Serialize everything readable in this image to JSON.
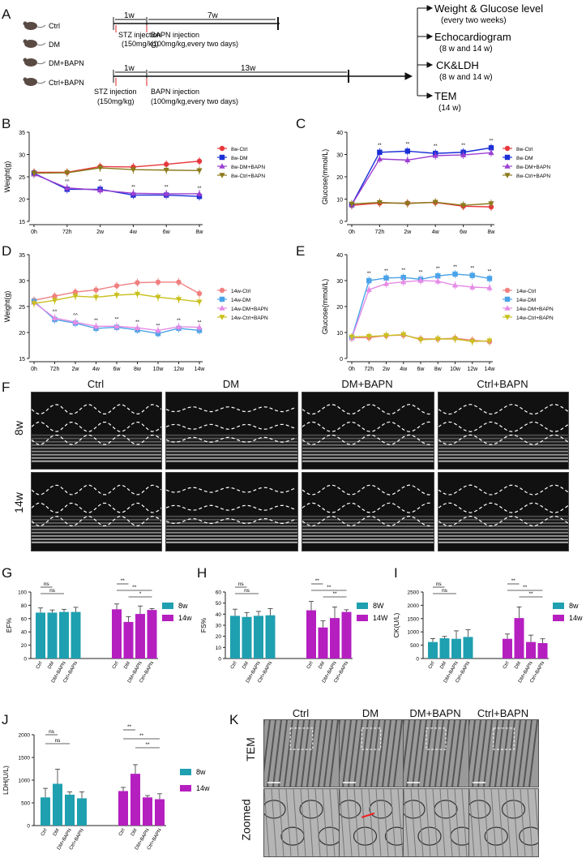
{
  "panels": {
    "A": "A",
    "B": "B",
    "C": "C",
    "D": "D",
    "E": "E",
    "F": "F",
    "G": "G",
    "H": "H",
    "I": "I",
    "J": "J",
    "K": "K"
  },
  "panel_a": {
    "groups": [
      "Ctrl",
      "DM",
      "DM+BAPN",
      "Ctrl+BAPN"
    ],
    "timeline1": {
      "wk1": "1w",
      "wk2": "7w",
      "stz": "STZ injection",
      "stz_dose": "(150mg/kg)",
      "bapn": "BAPN injection",
      "bapn_dose": "(100mg/kg,every two days)"
    },
    "timeline2": {
      "wk1": "1w",
      "wk2": "13w",
      "stz": "STZ injection",
      "stz_dose": "(150mg/kg)",
      "bapn": "BAPN injection",
      "bapn_dose": "(100mg/kg,every two days)"
    },
    "measures": [
      {
        "title": "Weight & Glucose level",
        "sub": "(every two weeks)"
      },
      {
        "title": "Echocardiogram",
        "sub": "(8 w and 14 w)"
      },
      {
        "title": "CK&LDH",
        "sub": "(8 w and 14 w)"
      },
      {
        "title": "TEM",
        "sub": "(14 w)"
      }
    ]
  },
  "colors": {
    "ctrl": "#e8383d",
    "dm": "#1a2fd6",
    "dmbapn": "#9b3fd1",
    "ctrlbapn": "#8a7a1a",
    "c14_ctrl": "#f08080",
    "c14_dm": "#4aa3e8",
    "c14_dmbapn": "#e58be6",
    "c14_ctrlbapn": "#c9c01e",
    "w8": "#1fa0b0",
    "w14": "#b51fc0"
  },
  "echo": {
    "cols": [
      "Ctrl",
      "DM",
      "DM+BAPN",
      "Ctrl+BAPN"
    ],
    "rows": [
      "8w",
      "14w"
    ]
  },
  "tem": {
    "cols": [
      "Ctrl",
      "DM",
      "DM+BAPN",
      "Ctrl+BAPN"
    ],
    "rows": [
      "TEM",
      "Zoomed"
    ]
  },
  "chart_data": [
    {
      "id": "B",
      "type": "line",
      "ylabel": "Weight(g)",
      "xlabel": "",
      "ylim": [
        15,
        35
      ],
      "yticks": [
        15,
        20,
        25,
        30,
        35
      ],
      "categories": [
        "0h",
        "72h",
        "2w",
        "4w",
        "6w",
        "8w"
      ],
      "series": [
        {
          "name": "8w-Ctrl",
          "color": "#e8383d",
          "marker": "circle",
          "values": [
            26,
            26,
            27.3,
            27.2,
            27.8,
            28.5
          ]
        },
        {
          "name": "8w-DM",
          "color": "#1a2fd6",
          "marker": "square",
          "values": [
            25.8,
            22.2,
            22.2,
            20.9,
            20.9,
            20.6
          ]
        },
        {
          "name": "8w-DM+BAPN",
          "color": "#9b3fd1",
          "marker": "triangle",
          "values": [
            25.6,
            22.5,
            22,
            21.3,
            21.2,
            21.2
          ]
        },
        {
          "name": "8w-Ctrl+BAPN",
          "color": "#8a7a1a",
          "marker": "tridown",
          "values": [
            25.8,
            25.9,
            27,
            26.6,
            26.5,
            26.4
          ]
        }
      ],
      "annotations": [
        {
          "label": "^^",
          "index": 1
        },
        {
          "label": "**",
          "index": 2
        },
        {
          "label": "**",
          "index": 3
        },
        {
          "label": "**",
          "index": 4
        },
        {
          "label": "**",
          "index": 5
        }
      ]
    },
    {
      "id": "C",
      "type": "line",
      "ylabel": "Glucose(mmol/L)",
      "xlabel": "",
      "ylim": [
        0,
        40
      ],
      "yticks": [
        0,
        10,
        20,
        30,
        40
      ],
      "categories": [
        "0h",
        "72h",
        "2w",
        "4w",
        "6w",
        "8w"
      ],
      "series": [
        {
          "name": "8w-Ctrl",
          "color": "#e8383d",
          "marker": "circle",
          "values": [
            7.2,
            8.2,
            8.2,
            8.5,
            6.8,
            6.5
          ]
        },
        {
          "name": "8w-DM",
          "color": "#1a2fd6",
          "marker": "square",
          "values": [
            7.5,
            31,
            31.5,
            30.5,
            31,
            33
          ]
        },
        {
          "name": "8w-DM+BAPN",
          "color": "#9b3fd1",
          "marker": "triangle",
          "values": [
            7.5,
            28,
            27.5,
            29.5,
            29.8,
            30.8
          ]
        },
        {
          "name": "8w-Ctrl+BAPN",
          "color": "#8a7a1a",
          "marker": "tridown",
          "values": [
            7.8,
            8.5,
            8,
            8.6,
            7.2,
            8
          ]
        }
      ],
      "annotations": [
        {
          "label": "**",
          "index": 1
        },
        {
          "label": "**",
          "index": 2
        },
        {
          "label": "**",
          "index": 3
        },
        {
          "label": "**",
          "index": 4
        },
        {
          "label": "**",
          "index": 5
        }
      ]
    },
    {
      "id": "D",
      "type": "line",
      "ylabel": "Weight(g)",
      "xlabel": "",
      "ylim": [
        15,
        35
      ],
      "yticks": [
        15,
        20,
        25,
        30,
        35
      ],
      "categories": [
        "0h",
        "72h",
        "2w",
        "4w",
        "6w",
        "8w",
        "10w",
        "12w",
        "14w"
      ],
      "series": [
        {
          "name": "14w-Ctrl",
          "color": "#f08080",
          "marker": "circle",
          "values": [
            26.2,
            27,
            27.8,
            28.2,
            29,
            29.6,
            29.7,
            29.7,
            27.5
          ]
        },
        {
          "name": "14w-DM",
          "color": "#4aa3e8",
          "marker": "square",
          "values": [
            26,
            22.5,
            21.8,
            20.8,
            21,
            20.5,
            19.8,
            20.8,
            20.4
          ]
        },
        {
          "name": "14w-DM+BAPN",
          "color": "#e58be6",
          "marker": "triangle",
          "values": [
            25.8,
            22.8,
            22,
            21.2,
            21.2,
            20.9,
            20.4,
            21.1,
            21
          ]
        },
        {
          "name": "14w-Ctrl+BAPN",
          "color": "#c9c01e",
          "marker": "tridown",
          "values": [
            25.6,
            26.2,
            27,
            26.8,
            27.2,
            27.4,
            26.8,
            26.4,
            25.9
          ]
        }
      ],
      "annotations": [
        {
          "label": "^^",
          "index": 1
        },
        {
          "label": "^^",
          "index": 2
        },
        {
          "label": "**",
          "index": 3
        },
        {
          "label": "**",
          "index": 4
        },
        {
          "label": "**",
          "index": 5
        },
        {
          "label": "**",
          "index": 6
        },
        {
          "label": "**",
          "index": 7
        },
        {
          "label": "**",
          "index": 8
        }
      ]
    },
    {
      "id": "E",
      "type": "line",
      "ylabel": "Glucose(mmol/L)",
      "xlabel": "",
      "ylim": [
        0,
        40
      ],
      "yticks": [
        0,
        10,
        20,
        30,
        40
      ],
      "categories": [
        "0h",
        "72h",
        "2w",
        "4w",
        "6w",
        "8w",
        "10w",
        "12w",
        "14w"
      ],
      "series": [
        {
          "name": "14w-Ctrl",
          "color": "#f08080",
          "marker": "circle",
          "values": [
            8,
            8,
            8.8,
            9,
            7.5,
            7.5,
            7.8,
            7,
            6.5
          ]
        },
        {
          "name": "14w-DM",
          "color": "#4aa3e8",
          "marker": "square",
          "values": [
            8,
            30,
            31,
            31.2,
            30.5,
            31.8,
            32.5,
            32,
            30.8
          ]
        },
        {
          "name": "14w-DM+BAPN",
          "color": "#e58be6",
          "marker": "triangle",
          "values": [
            7.8,
            26.5,
            28.8,
            29.5,
            30,
            29.8,
            28.2,
            27.5,
            27.2
          ]
        },
        {
          "name": "14w-Ctrl+BAPN",
          "color": "#c9c01e",
          "marker": "tridown",
          "values": [
            8.3,
            8.5,
            8.8,
            9.2,
            7.2,
            7.5,
            7.5,
            6.5,
            6.8
          ]
        }
      ],
      "annotations": [
        {
          "label": "**",
          "index": 1
        },
        {
          "label": "**",
          "index": 2
        },
        {
          "label": "**",
          "index": 3
        },
        {
          "label": "**",
          "index": 4
        },
        {
          "label": "**",
          "index": 5
        },
        {
          "label": "**",
          "index": 6
        },
        {
          "label": "**",
          "index": 7
        },
        {
          "label": "**",
          "index": 8
        }
      ]
    },
    {
      "id": "G",
      "type": "bar",
      "ylabel": "EF%",
      "ylim": [
        0,
        100
      ],
      "yticks": [
        0,
        20,
        40,
        60,
        80,
        100
      ],
      "categories": [
        "Ctrl",
        "DM",
        "DM+BAPN",
        "Ctrl+BAPN"
      ],
      "series": [
        {
          "name": "8w",
          "color": "#1fa0b0",
          "values": [
            69,
            69,
            70,
            70
          ],
          "err": [
            7,
            4,
            4,
            7
          ]
        },
        {
          "name": "14w",
          "color": "#b51fc0",
          "values": [
            74,
            55,
            67,
            73
          ],
          "err": [
            8,
            8,
            12,
            2
          ]
        }
      ],
      "sig8": [
        {
          "label": "ns",
          "from": 0,
          "to": 1
        },
        {
          "label": "ns",
          "from": 0,
          "to": 2
        }
      ],
      "sig14": [
        {
          "label": "**",
          "from": 0,
          "to": 1
        },
        {
          "label": "**",
          "from": 0,
          "to": 3
        },
        {
          "label": "*",
          "from": 1,
          "to": 3
        }
      ]
    },
    {
      "id": "H",
      "type": "bar",
      "ylabel": "FS%",
      "ylim": [
        0,
        60
      ],
      "yticks": [
        0,
        10,
        20,
        30,
        40,
        50,
        60
      ],
      "categories": [
        "Ctrl",
        "DM",
        "DM+BAPN",
        "Ctrl+BAPN"
      ],
      "series": [
        {
          "name": "8W",
          "color": "#1fa0b0",
          "values": [
            38.5,
            37.5,
            38.5,
            39
          ],
          "err": [
            6,
            4,
            4,
            6
          ]
        },
        {
          "name": "14W",
          "color": "#b51fc0",
          "values": [
            43.5,
            28,
            36.5,
            42
          ],
          "err": [
            8,
            6,
            10,
            2
          ]
        }
      ],
      "sig8": [
        {
          "label": "ns",
          "from": 0,
          "to": 1
        },
        {
          "label": "ns",
          "from": 0,
          "to": 2
        }
      ],
      "sig14": [
        {
          "label": "**",
          "from": 0,
          "to": 1
        },
        {
          "label": "**",
          "from": 0,
          "to": 3
        },
        {
          "label": "**",
          "from": 1,
          "to": 3
        }
      ]
    },
    {
      "id": "I",
      "type": "bar",
      "ylabel": "CK(U/L)",
      "ylim": [
        0,
        2500
      ],
      "yticks": [
        0,
        500,
        1000,
        1500,
        2000,
        2500
      ],
      "categories": [
        "Ctrl",
        "DM",
        "DM+BAPN",
        "Ctrl+BAPN"
      ],
      "series": [
        {
          "name": "8w",
          "color": "#1fa0b0",
          "values": [
            620,
            760,
            740,
            810
          ],
          "err": [
            130,
            70,
            300,
            270
          ]
        },
        {
          "name": "14w",
          "color": "#b51fc0",
          "values": [
            740,
            1520,
            620,
            580
          ],
          "err": [
            180,
            420,
            260,
            160
          ]
        }
      ],
      "sig8": [
        {
          "label": "ns",
          "from": 0,
          "to": 1
        },
        {
          "label": "ns",
          "from": 0,
          "to": 2
        }
      ],
      "sig14": [
        {
          "label": "**",
          "from": 0,
          "to": 1
        },
        {
          "label": "**",
          "from": 0,
          "to": 3
        },
        {
          "label": "**",
          "from": 1,
          "to": 3
        }
      ]
    },
    {
      "id": "J",
      "type": "bar",
      "ylabel": "LDH(U/L)",
      "ylim": [
        0,
        2000
      ],
      "yticks": [
        0,
        500,
        1000,
        1500,
        2000
      ],
      "categories": [
        "Ctrl",
        "DM",
        "DM+BAPN",
        "Ctrl+BAPN"
      ],
      "series": [
        {
          "name": "8w",
          "color": "#1fa0b0",
          "values": [
            620,
            920,
            680,
            600
          ],
          "err": [
            200,
            320,
            60,
            140
          ]
        },
        {
          "name": "14w",
          "color": "#b51fc0",
          "values": [
            760,
            1140,
            620,
            580
          ],
          "err": [
            80,
            200,
            40,
            120
          ]
        }
      ],
      "sig8": [
        {
          "label": "ns",
          "from": 0,
          "to": 1
        },
        {
          "label": "ns",
          "from": 0,
          "to": 2
        }
      ],
      "sig14": [
        {
          "label": "**",
          "from": 0,
          "to": 1
        },
        {
          "label": "**",
          "from": 0,
          "to": 3
        },
        {
          "label": "**",
          "from": 1,
          "to": 3
        }
      ]
    }
  ]
}
